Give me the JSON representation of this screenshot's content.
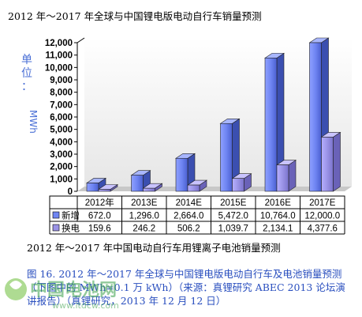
{
  "heading": "2012 年～2017 年全球与中国锂电版电动自行车销量预测",
  "subheading": "2012 年～2017 年中国电动自行车用锂离子电池销量预测",
  "caption": {
    "line1": "图 16. 2012 年～2017 年全球与中国锂电版电动自行车及电池销量预测",
    "line2": "（下图中的 MWh=0.1 万 kWh）（来源：真锂研究 ABEC 2013 论坛演",
    "line3": "讲报告）（真锂研究，2013 年 12 月 12 日）"
  },
  "watermark": {
    "name": "中国电池网",
    "url": "www.itdcw.com"
  },
  "chart_data": {
    "type": "bar",
    "ylabel": "单位：MWh",
    "ylim": [
      0,
      12000
    ],
    "yticks": [
      "0",
      "1,000",
      "2,000",
      "3,000",
      "4,000",
      "5,000",
      "6,000",
      "7,000",
      "8,000",
      "9,000",
      "10,000",
      "11,000",
      "12,000"
    ],
    "categories": [
      "2012年",
      "2013E",
      "2014E",
      "2015E",
      "2016E",
      "2017E"
    ],
    "series": [
      {
        "name": "新增",
        "color": "#6f85f2",
        "values": [
          672.0,
          1296.0,
          2664.0,
          5472.0,
          10764.0,
          12000.0
        ],
        "labels": [
          "672.0",
          "1,296.0",
          "2,664.0",
          "5,472.0",
          "10,764.0",
          "12,000.0"
        ]
      },
      {
        "name": "换电",
        "color": "#9a93e6",
        "values": [
          159.6,
          246.2,
          506.2,
          1039.7,
          2134.1,
          4377.6
        ],
        "labels": [
          "159.6",
          "246.2",
          "506.2",
          "1,039.7",
          "2,134.1",
          "4,377.6"
        ]
      }
    ],
    "grid": false
  }
}
